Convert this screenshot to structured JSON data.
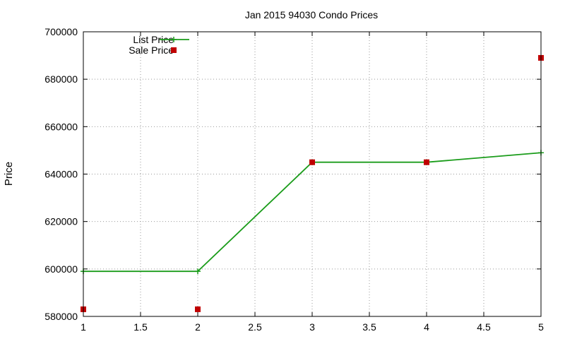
{
  "chart_data": {
    "type": "line",
    "title": "Jan 2015 94030 Condo Prices",
    "xlabel": "",
    "ylabel": "Price",
    "xlim": [
      1,
      5
    ],
    "ylim": [
      580000,
      700000
    ],
    "x_ticks": [
      1,
      1.5,
      2,
      2.5,
      3,
      3.5,
      4,
      4.5,
      5
    ],
    "x_tick_labels": [
      "1",
      "1.5",
      "2",
      "2.5",
      "3",
      "3.5",
      "4",
      "4.5",
      "5"
    ],
    "y_ticks": [
      580000,
      600000,
      620000,
      640000,
      660000,
      680000,
      700000
    ],
    "y_tick_labels": [
      "580000",
      "600000",
      "620000",
      "640000",
      "660000",
      "680000",
      "700000"
    ],
    "grid": true,
    "legend_position": "top-left",
    "series": [
      {
        "name": "List Price",
        "style": "lines+points",
        "marker": "plus",
        "color": "#1a9c1a",
        "x": [
          1,
          2,
          3,
          4,
          5
        ],
        "y": [
          599000,
          599000,
          645000,
          645000,
          649000
        ]
      },
      {
        "name": "Sale Price",
        "style": "points",
        "marker": "square",
        "color": "#c00000",
        "x": [
          1,
          2,
          3,
          4,
          5
        ],
        "y": [
          583000,
          583000,
          645000,
          645000,
          689000
        ]
      }
    ]
  }
}
